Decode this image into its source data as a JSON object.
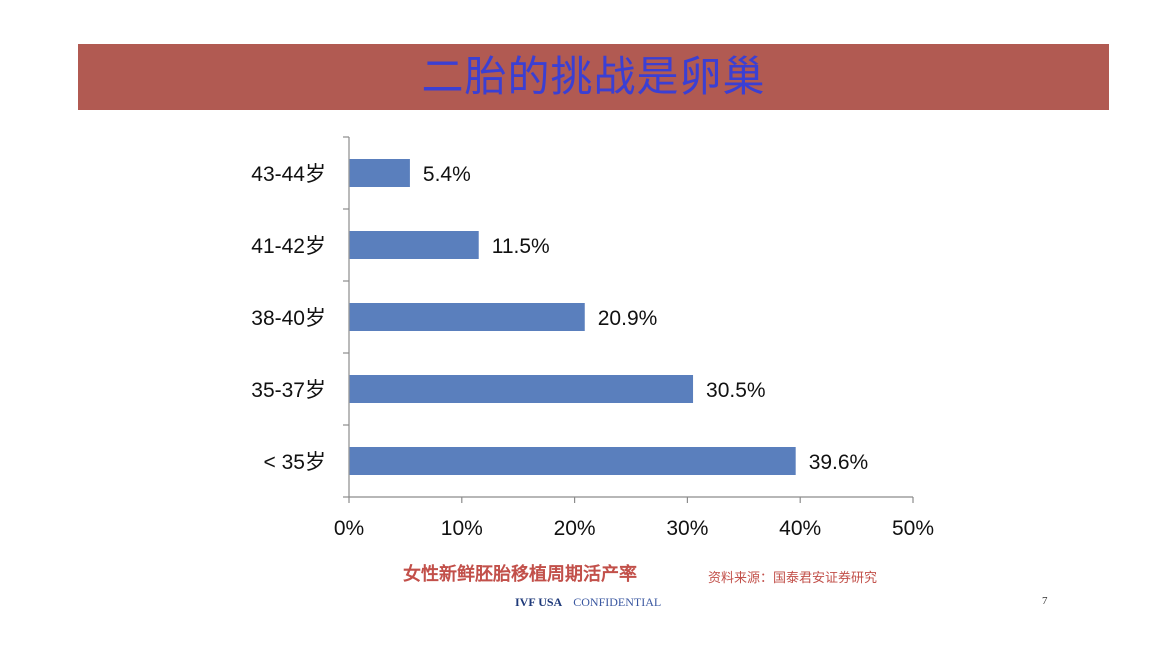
{
  "slide": {
    "title": "二胎的挑战是卵巢",
    "caption": "女性新鲜胚胎移植周期活产率",
    "source": "资料来源：国泰君安证券研究",
    "footer_brand": "IVF USA",
    "footer_confidential": "CONFIDENTIAL",
    "page_number": "7"
  },
  "colors": {
    "banner": "#b15a52",
    "title": "#3b3fd3",
    "bar": "#5a7fbd",
    "caption": "#c2504a"
  },
  "chart_data": {
    "type": "bar",
    "orientation": "horizontal",
    "categories": [
      "43-44岁",
      "41-42岁",
      "38-40岁",
      "35-37岁",
      "< 35岁"
    ],
    "values": [
      5.4,
      11.5,
      20.9,
      30.5,
      39.6
    ],
    "value_labels": [
      "5.4%",
      "11.5%",
      "20.9%",
      "30.5%",
      "39.6%"
    ],
    "x_ticks": [
      "0%",
      "10%",
      "20%",
      "30%",
      "40%",
      "50%"
    ],
    "xlim": [
      0,
      50
    ],
    "grid": false,
    "legend": false
  }
}
